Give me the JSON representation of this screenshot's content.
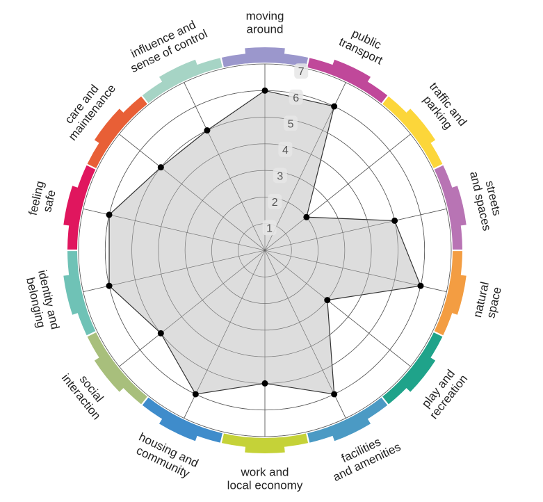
{
  "chart_data": {
    "type": "radar",
    "title": "",
    "rlim": [
      0,
      7
    ],
    "r_ticks": [
      1,
      2,
      3,
      4,
      5,
      6,
      7
    ],
    "grid": true,
    "categories": [
      {
        "lines": [
          "moving",
          "around"
        ],
        "color": "#9b97cc"
      },
      {
        "lines": [
          "public",
          "transport"
        ],
        "color": "#c0489a"
      },
      {
        "lines": [
          "traffic and",
          "parking"
        ],
        "color": "#fcd63a"
      },
      {
        "lines": [
          "streets",
          "and spaces"
        ],
        "color": "#b874b4"
      },
      {
        "lines": [
          "natural",
          "space"
        ],
        "color": "#f39d42"
      },
      {
        "lines": [
          "play and",
          "recreation"
        ],
        "color": "#1fa38a"
      },
      {
        "lines": [
          "facilities",
          "and amenities"
        ],
        "color": "#4b9ac4"
      },
      {
        "lines": [
          "work and",
          "local economy"
        ],
        "color": "#c5d238"
      },
      {
        "lines": [
          "housing and",
          "community"
        ],
        "color": "#3f8ccb"
      },
      {
        "lines": [
          "social",
          "interaction"
        ],
        "color": "#a8bf7c"
      },
      {
        "lines": [
          "identity and",
          "belonging"
        ],
        "color": "#6fc2b6"
      },
      {
        "lines": [
          "feeling",
          "safe"
        ],
        "color": "#e0165e"
      },
      {
        "lines": [
          "care and",
          "maintenance"
        ],
        "color": "#e85f36"
      },
      {
        "lines": [
          "influence and",
          "sense of control"
        ],
        "color": "#a6d4c5"
      }
    ],
    "values": [
      6,
      6,
      2,
      5,
      6,
      3,
      6,
      5,
      6,
      5,
      6,
      6,
      5,
      5
    ],
    "fill_color": "#d3d3d3",
    "line_color": "#333333",
    "point_color": "#000000",
    "grid_color": "#555555"
  }
}
